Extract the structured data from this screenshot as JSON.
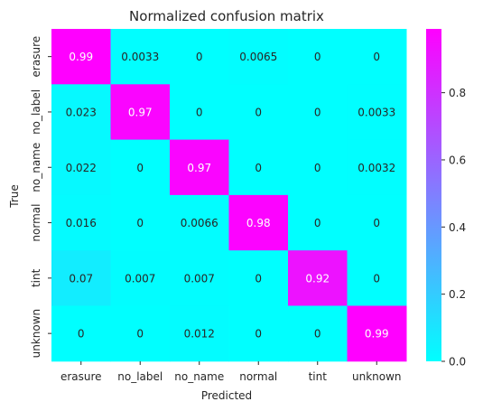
{
  "chart_data": {
    "type": "heatmap",
    "title": "Normalized confusion matrix",
    "xlabel": "Predicted",
    "ylabel": "True",
    "x_categories": [
      "erasure",
      "no_label",
      "no_name",
      "normal",
      "tint",
      "unknown"
    ],
    "y_categories": [
      "erasure",
      "no_label",
      "no_name",
      "normal",
      "tint",
      "unknown"
    ],
    "values": [
      [
        0.99,
        0.0033,
        0,
        0.0065,
        0,
        0
      ],
      [
        0.023,
        0.97,
        0,
        0,
        0,
        0.0033
      ],
      [
        0.022,
        0,
        0.97,
        0,
        0,
        0.0032
      ],
      [
        0.016,
        0,
        0.0066,
        0.98,
        0,
        0
      ],
      [
        0.07,
        0.007,
        0.007,
        0,
        0.92,
        0
      ],
      [
        0,
        0,
        0.012,
        0,
        0,
        0.99
      ]
    ],
    "cell_labels": [
      [
        "0.99",
        "0.0033",
        "0",
        "0.0065",
        "0",
        "0"
      ],
      [
        "0.023",
        "0.97",
        "0",
        "0",
        "0",
        "0.0033"
      ],
      [
        "0.022",
        "0",
        "0.97",
        "0",
        "0",
        "0.0032"
      ],
      [
        "0.016",
        "0",
        "0.0066",
        "0.98",
        "0",
        "0"
      ],
      [
        "0.07",
        "0.007",
        "0.007",
        "0",
        "0.92",
        "0"
      ],
      [
        "0",
        "0",
        "0.012",
        "0",
        "0",
        "0.99"
      ]
    ],
    "colormap": "cool",
    "colors": {
      "low": "#00ffff",
      "high": "#ff00ff"
    },
    "colorbar": {
      "range": [
        0,
        0.99
      ],
      "ticks": [
        0.0,
        0.2,
        0.4,
        0.6,
        0.8
      ],
      "tick_labels": [
        "0.0",
        "0.2",
        "0.4",
        "0.6",
        "0.8"
      ]
    }
  }
}
